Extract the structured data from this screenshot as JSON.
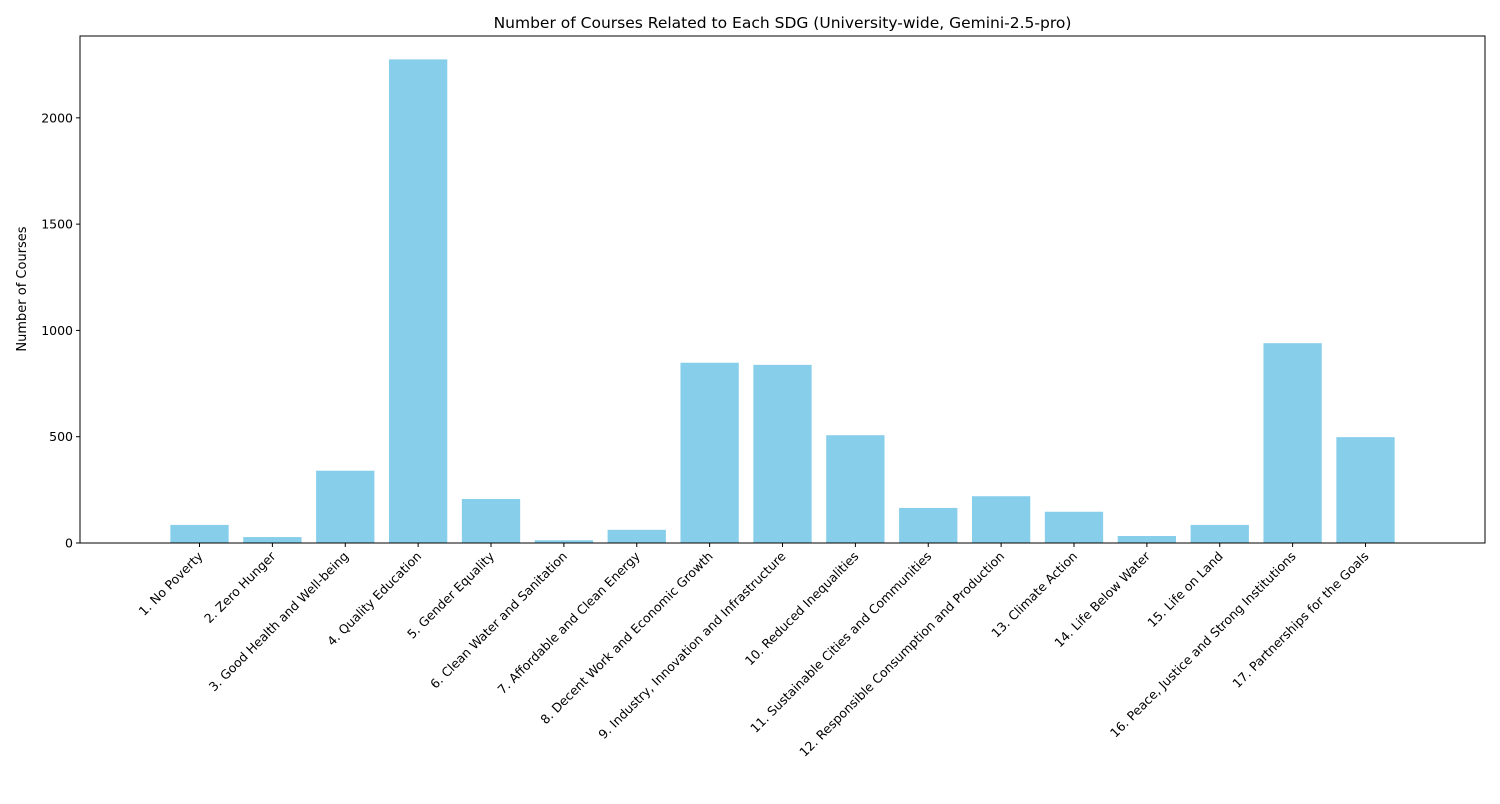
{
  "chart_data": {
    "type": "bar",
    "title": "Number of Courses Related to Each SDG (University-wide, Gemini-2.5-pro)",
    "xlabel": "",
    "ylabel": "Number of Courses",
    "ylim": [
      0,
      2385
    ],
    "yticks": [
      0,
      500,
      1000,
      1500,
      2000
    ],
    "grid": false,
    "legend": "none",
    "bar_color": "#87CEEB",
    "categories": [
      "1. No Poverty",
      "2. Zero Hunger",
      "3. Good Health and Well-being",
      "4. Quality Education",
      "5. Gender Equality",
      "6. Clean Water and Sanitation",
      "7. Affordable and Clean Energy",
      "8. Decent Work and Economic Growth",
      "9. Industry, Innovation and Infrastructure",
      "10. Reduced Inequalities",
      "11. Sustainable Cities and Communities",
      "12. Responsible Consumption and Production",
      "13. Climate Action",
      "14. Life Below Water",
      "15. Life on Land",
      "16. Peace, Justice and Strong Institutions",
      "17. Partnerships for the Goals"
    ],
    "values": [
      85,
      28,
      340,
      2275,
      207,
      13,
      62,
      848,
      838,
      507,
      165,
      220,
      147,
      33,
      85,
      940,
      498
    ]
  }
}
